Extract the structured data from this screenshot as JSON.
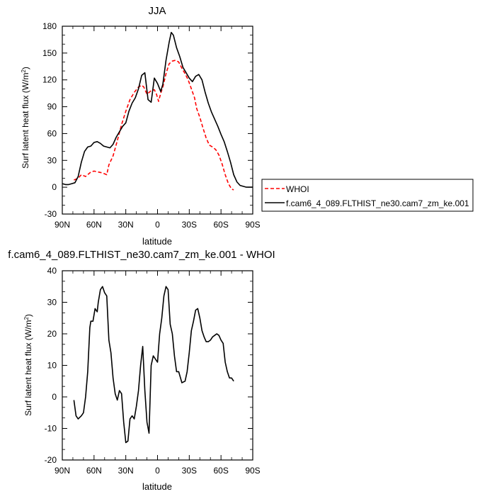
{
  "chart_data": [
    {
      "type": "line",
      "title": "JJA",
      "xlabel": "latitude",
      "ylabel": "Surf latent heat flux (W/m",
      "ylabel_sup": "2",
      "ylabel_close": ")",
      "xlim": [
        90,
        -90
      ],
      "ylim": [
        -30,
        180
      ],
      "xticks": [
        90,
        60,
        30,
        0,
        -30,
        -60,
        -90
      ],
      "xtick_labels": [
        "90N",
        "60N",
        "30N",
        "0",
        "30S",
        "60S",
        "90S"
      ],
      "yticks": [
        -30,
        0,
        30,
        60,
        90,
        120,
        150,
        180
      ],
      "ytick_labels": [
        "-30",
        "0",
        "30",
        "60",
        "90",
        "120",
        "150",
        "180"
      ],
      "legend": "outside-right",
      "series": [
        {
          "name": "WHOI",
          "color": "#ff0000",
          "dash": "dashed",
          "x": [
            79,
            75,
            72,
            68,
            63,
            60,
            56,
            52,
            48,
            46,
            42,
            38,
            34,
            30,
            26,
            22,
            18,
            15,
            13,
            10,
            6,
            3,
            1,
            -1,
            -3,
            -5,
            -8,
            -11,
            -14,
            -17,
            -20,
            -23,
            -26,
            -29,
            -32,
            -35,
            -37,
            -40,
            -43,
            -46,
            -49,
            -52,
            -55,
            -58,
            -61,
            -64,
            -67,
            -70,
            -72
          ],
          "y": [
            8,
            10,
            14,
            12,
            17,
            18,
            17,
            16,
            14,
            25,
            35,
            52,
            70,
            85,
            98,
            106,
            112,
            114,
            112,
            104,
            108,
            109,
            104,
            96,
            105,
            112,
            127,
            138,
            141,
            142,
            140,
            133,
            127,
            120,
            110,
            100,
            88,
            78,
            66,
            55,
            47,
            45,
            42,
            36,
            26,
            14,
            4,
            -2,
            -3
          ]
        },
        {
          "name": "f.cam6_4_089.FLTHIST_ne30.cam7_zm_ke.001",
          "color": "#000000",
          "dash": "solid",
          "x": [
            90,
            87,
            84,
            81,
            78,
            75,
            72,
            69,
            66,
            63,
            60,
            57,
            54,
            51,
            48,
            45,
            42,
            39,
            36,
            33,
            30,
            27,
            24,
            21,
            18,
            15,
            12,
            9,
            6,
            3,
            0,
            -3,
            -5,
            -8,
            -11,
            -13,
            -15,
            -18,
            -21,
            -24,
            -27,
            -30,
            -33,
            -36,
            -39,
            -42,
            -45,
            -48,
            -51,
            -54,
            -57,
            -60,
            -63,
            -66,
            -69,
            -72,
            -75,
            -78,
            -81,
            -84,
            -90
          ],
          "y": [
            4,
            3,
            3,
            4,
            5,
            12,
            28,
            40,
            45,
            46,
            50,
            51,
            49,
            46,
            45,
            44,
            48,
            56,
            62,
            68,
            72,
            85,
            94,
            100,
            110,
            125,
            128,
            98,
            95,
            122,
            116,
            107,
            115,
            142,
            162,
            173,
            170,
            156,
            146,
            134,
            128,
            122,
            118,
            124,
            126,
            120,
            106,
            94,
            84,
            76,
            68,
            59,
            51,
            40,
            28,
            14,
            6,
            2,
            1,
            0,
            0
          ]
        }
      ]
    },
    {
      "type": "line",
      "title": "f.cam6_4_089.FLTHIST_ne30.cam7_zm_ke.001 - WHOI",
      "xlabel": "latitude",
      "ylabel": "Surf latent heat flux (W/m",
      "ylabel_sup": "2",
      "ylabel_close": ")",
      "xlim": [
        90,
        -90
      ],
      "ylim": [
        -20,
        40
      ],
      "xticks": [
        90,
        60,
        30,
        0,
        -30,
        -60,
        -90
      ],
      "xtick_labels": [
        "90N",
        "60N",
        "30N",
        "0",
        "30S",
        "60S",
        "90S"
      ],
      "yticks": [
        -20,
        -10,
        0,
        10,
        20,
        30,
        40
      ],
      "ytick_labels": [
        "-20",
        "-10",
        "0",
        "10",
        "20",
        "30",
        "40"
      ],
      "series": [
        {
          "color": "#000000",
          "dash": "solid",
          "x": [
            79,
            77,
            75,
            72,
            70,
            68,
            66,
            64,
            63,
            61,
            59,
            57,
            56,
            54,
            52,
            50,
            48,
            46,
            44,
            42,
            40,
            38,
            36,
            34,
            32,
            30,
            28,
            26,
            24,
            22,
            20,
            18,
            16,
            14,
            12,
            10,
            8,
            6,
            4,
            2,
            0,
            -2,
            -4,
            -6,
            -8,
            -10,
            -12,
            -14,
            -16,
            -18,
            -20,
            -23,
            -26,
            -28,
            -30,
            -32,
            -34,
            -36,
            -38,
            -40,
            -42,
            -44,
            -46,
            -48,
            -50,
            -52,
            -54,
            -56,
            -58,
            -60,
            -62,
            -64,
            -66,
            -68,
            -70,
            -72
          ],
          "y": [
            -1,
            -6,
            -7,
            -6,
            -5,
            0,
            8,
            22,
            24,
            24,
            28,
            27,
            30,
            34,
            35,
            33,
            32,
            18,
            14,
            6,
            1,
            -1,
            2,
            1,
            -8,
            -14.5,
            -14,
            -7,
            -6,
            -7,
            -3,
            2,
            10,
            16,
            2,
            -8,
            -11.5,
            10,
            13,
            12,
            11,
            20,
            25,
            32,
            35,
            34,
            23,
            20,
            13,
            8,
            8,
            4.5,
            5,
            8,
            14,
            21,
            24,
            27.5,
            28,
            25,
            21,
            19,
            17.5,
            17.5,
            18,
            19,
            19.5,
            20,
            19.5,
            18,
            17,
            11,
            8,
            6,
            6,
            5
          ]
        }
      ]
    }
  ]
}
